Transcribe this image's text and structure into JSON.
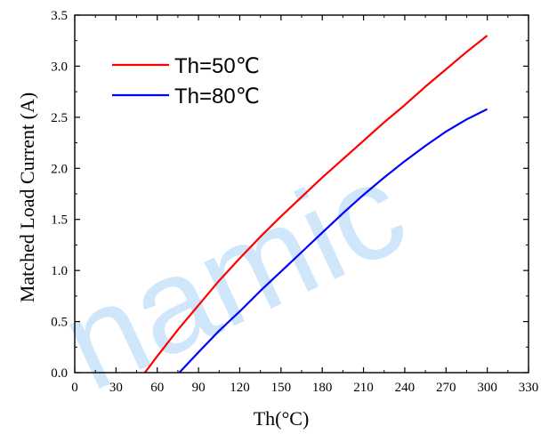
{
  "watermark": {
    "text": "namic",
    "color": "#cfe6fb"
  },
  "chart_data": {
    "type": "line",
    "title": "",
    "xlabel": "Th(°C)",
    "ylabel": "Matched Load Current (A)",
    "xlim": [
      0,
      330
    ],
    "ylim": [
      0.0,
      3.5
    ],
    "xticks": [
      "0",
      "30",
      "60",
      "90",
      "120",
      "150",
      "180",
      "210",
      "240",
      "270",
      "300",
      "330"
    ],
    "yticks": [
      "0.0",
      "0.5",
      "1.0",
      "1.5",
      "2.0",
      "2.5",
      "3.0",
      "3.5"
    ],
    "grid": false,
    "legend_position": "top-left",
    "series": [
      {
        "name": "Th=50℃",
        "color": "#ff0000",
        "x": [
          51,
          60,
          75,
          90,
          105,
          120,
          135,
          150,
          165,
          180,
          195,
          210,
          225,
          240,
          255,
          270,
          285,
          300
        ],
        "y": [
          0.0,
          0.16,
          0.42,
          0.66,
          0.9,
          1.12,
          1.33,
          1.53,
          1.72,
          1.91,
          2.09,
          2.27,
          2.45,
          2.62,
          2.8,
          2.97,
          3.14,
          3.3
        ]
      },
      {
        "name": "Th=80℃",
        "color": "#0000ff",
        "x": [
          76,
          90,
          105,
          120,
          135,
          150,
          165,
          180,
          195,
          210,
          225,
          240,
          255,
          270,
          285,
          300
        ],
        "y": [
          0.0,
          0.2,
          0.41,
          0.6,
          0.8,
          0.99,
          1.18,
          1.37,
          1.56,
          1.74,
          1.91,
          2.07,
          2.22,
          2.36,
          2.48,
          2.58
        ]
      }
    ]
  }
}
